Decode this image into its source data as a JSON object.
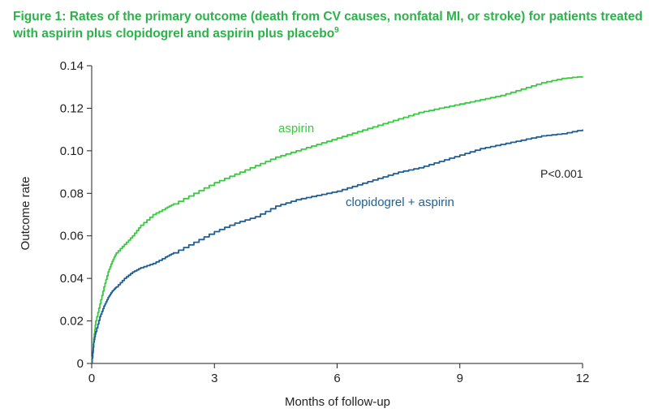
{
  "figure": {
    "title_text": "Figure 1: Rates of the primary outcome (death from CV causes, nonfatal MI, or stroke) for patients treated with aspirin plus clopidogrel and aspirin plus placebo",
    "title_sup": "9"
  },
  "colors": {
    "title": "#2bb34a",
    "aspirin": "#39c93f",
    "clopidogrel": "#1f5f96",
    "axis": "#222222"
  },
  "chart_data": {
    "type": "line",
    "xlabel": "Months of follow-up",
    "ylabel": "Outcome rate",
    "xlim": [
      0,
      12
    ],
    "ylim": [
      0,
      0.14
    ],
    "x_ticks": [
      0,
      3,
      6,
      9,
      12
    ],
    "x_tick_labels": [
      "0",
      "3",
      "6",
      "9",
      "12"
    ],
    "y_ticks": [
      0,
      0.02,
      0.04,
      0.06,
      0.08,
      0.1,
      0.12,
      0.14
    ],
    "y_tick_labels": [
      "0",
      "0.02",
      "0.04",
      "0.06",
      "0.08",
      "0.10",
      "0.12",
      "0.14"
    ],
    "grid": false,
    "series": [
      {
        "name": "aspirin",
        "x": [
          0,
          0.05,
          0.1,
          0.2,
          0.3,
          0.4,
          0.5,
          0.6,
          0.8,
          1.0,
          1.2,
          1.5,
          1.8,
          2.0,
          2.5,
          3.0,
          3.5,
          4.0,
          4.5,
          5.0,
          5.5,
          6.0,
          6.5,
          7.0,
          7.5,
          8.0,
          8.5,
          9.0,
          9.5,
          10.0,
          10.5,
          11.0,
          11.5,
          12.0
        ],
        "y": [
          0,
          0.012,
          0.02,
          0.028,
          0.036,
          0.043,
          0.048,
          0.052,
          0.056,
          0.06,
          0.065,
          0.07,
          0.073,
          0.075,
          0.08,
          0.085,
          0.089,
          0.093,
          0.097,
          0.1,
          0.103,
          0.106,
          0.109,
          0.112,
          0.115,
          0.118,
          0.12,
          0.122,
          0.124,
          0.126,
          0.129,
          0.132,
          0.134,
          0.135
        ]
      },
      {
        "name": "clopidogrel + aspirin",
        "x": [
          0,
          0.05,
          0.1,
          0.2,
          0.3,
          0.4,
          0.5,
          0.6,
          0.8,
          1.0,
          1.2,
          1.5,
          1.8,
          2.0,
          2.5,
          3.0,
          3.5,
          4.0,
          4.5,
          5.0,
          5.5,
          6.0,
          6.5,
          7.0,
          7.5,
          8.0,
          8.5,
          9.0,
          9.5,
          10.0,
          10.5,
          11.0,
          11.5,
          12.0
        ],
        "y": [
          0,
          0.01,
          0.015,
          0.022,
          0.027,
          0.031,
          0.034,
          0.036,
          0.04,
          0.043,
          0.045,
          0.047,
          0.05,
          0.052,
          0.057,
          0.062,
          0.066,
          0.069,
          0.074,
          0.077,
          0.079,
          0.081,
          0.084,
          0.087,
          0.09,
          0.092,
          0.095,
          0.098,
          0.101,
          0.103,
          0.105,
          0.107,
          0.108,
          0.11
        ]
      }
    ],
    "annotations": {
      "aspirin_label": "aspirin",
      "clopidogrel_label": "clopidogrel + aspirin",
      "p_value": "P<0.001"
    }
  }
}
